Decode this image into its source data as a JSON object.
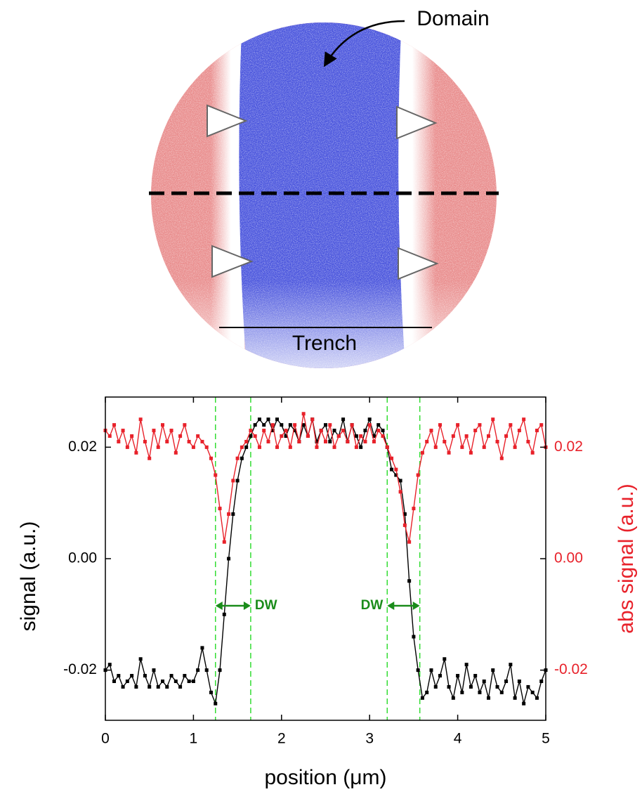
{
  "figure": {
    "domain_label": "Domain",
    "trench_label": "Trench"
  },
  "chart_data": {
    "type": "line",
    "x_label": "position (μm)",
    "y_label": "signal (a.u.)",
    "y2_label": "abs signal (a.u.)",
    "x": [
      0,
      0.05,
      0.1,
      0.15,
      0.2,
      0.25,
      0.3,
      0.35,
      0.4,
      0.45,
      0.5,
      0.55,
      0.6,
      0.65,
      0.7,
      0.75,
      0.8,
      0.85,
      0.9,
      0.95,
      1,
      1.05,
      1.1,
      1.15,
      1.2,
      1.25,
      1.3,
      1.35,
      1.4,
      1.45,
      1.5,
      1.55,
      1.6,
      1.65,
      1.7,
      1.75,
      1.8,
      1.85,
      1.9,
      1.95,
      2,
      2.05,
      2.1,
      2.15,
      2.2,
      2.25,
      2.3,
      2.35,
      2.4,
      2.45,
      2.5,
      2.55,
      2.6,
      2.65,
      2.7,
      2.75,
      2.8,
      2.85,
      2.9,
      2.95,
      3,
      3.05,
      3.1,
      3.15,
      3.2,
      3.25,
      3.3,
      3.35,
      3.4,
      3.45,
      3.5,
      3.55,
      3.6,
      3.65,
      3.7,
      3.75,
      3.8,
      3.85,
      3.9,
      3.95,
      4,
      4.05,
      4.1,
      4.15,
      4.2,
      4.25,
      4.3,
      4.35,
      4.4,
      4.45,
      4.5,
      4.55,
      4.6,
      4.65,
      4.7,
      4.75,
      4.8,
      4.85,
      4.9,
      4.95,
      5
    ],
    "series": [
      {
        "color": "#000000",
        "values": [
          -0.02,
          -0.019,
          -0.022,
          -0.021,
          -0.023,
          -0.022,
          -0.021,
          -0.023,
          -0.018,
          -0.021,
          -0.023,
          -0.02,
          -0.023,
          -0.022,
          -0.023,
          -0.021,
          -0.022,
          -0.023,
          -0.021,
          -0.022,
          -0.022,
          -0.02,
          -0.016,
          -0.02,
          -0.024,
          -0.026,
          -0.02,
          -0.01,
          0,
          0.008,
          0.014,
          0.018,
          0.02,
          0.022,
          0.024,
          0.025,
          0.024,
          0.025,
          0.023,
          0.025,
          0.024,
          0.022,
          0.024,
          0.023,
          0.021,
          0.024,
          0.022,
          0.025,
          0.021,
          0.023,
          0.024,
          0.021,
          0.023,
          0.022,
          0.025,
          0.021,
          0.024,
          0.022,
          0.02,
          0.023,
          0.025,
          0.022,
          0.024,
          0.023,
          0.02,
          0.016,
          0.015,
          0.014,
          0.008,
          -0.004,
          -0.014,
          -0.02,
          -0.025,
          -0.024,
          -0.02,
          -0.023,
          -0.021,
          -0.018,
          -0.023,
          -0.025,
          -0.021,
          -0.024,
          -0.019,
          -0.023,
          -0.021,
          -0.024,
          -0.022,
          -0.025,
          -0.02,
          -0.023,
          -0.024,
          -0.022,
          -0.019,
          -0.025,
          -0.022,
          -0.026,
          -0.023,
          -0.024,
          -0.025,
          -0.022,
          -0.02
        ]
      },
      {
        "color": "#e8212a",
        "axis": "y2",
        "values": [
          0.023,
          0.022,
          0.024,
          0.021,
          0.023,
          0.02,
          0.022,
          0.019,
          0.025,
          0.021,
          0.018,
          0.023,
          0.02,
          0.024,
          0.021,
          0.023,
          0.019,
          0.022,
          0.024,
          0.021,
          0.02,
          0.022,
          0.021,
          0.02,
          0.018,
          0.015,
          0.009,
          0.003,
          0.008,
          0.014,
          0.018,
          0.02,
          0.021,
          0.023,
          0.022,
          0.02,
          0.023,
          0.021,
          0.024,
          0.02,
          0.022,
          0.023,
          0.02,
          0.024,
          0.021,
          0.026,
          0.022,
          0.025,
          0.02,
          0.023,
          0.021,
          0.024,
          0.02,
          0.022,
          0.023,
          0.021,
          0.024,
          0.02,
          0.022,
          0.021,
          0.024,
          0.021,
          0.023,
          0.022,
          0.02,
          0.018,
          0.016,
          0.012,
          0.006,
          0.003,
          0.009,
          0.015,
          0.019,
          0.021,
          0.023,
          0.02,
          0.024,
          0.021,
          0.019,
          0.022,
          0.024,
          0.02,
          0.022,
          0.019,
          0.023,
          0.024,
          0.02,
          0.022,
          0.025,
          0.021,
          0.018,
          0.022,
          0.024,
          0.02,
          0.023,
          0.025,
          0.021,
          0.019,
          0.023,
          0.024,
          0.02
        ]
      }
    ],
    "xlim": [
      0,
      5
    ],
    "xticks": [
      0,
      1,
      2,
      3,
      4,
      5
    ],
    "ylim": [
      -0.029,
      0.029
    ],
    "yticks": [
      -0.02,
      {
        "value": 0,
        "label": "0.00"
      },
      0.02
    ],
    "y2lim": [
      -0.029,
      0.029
    ],
    "y2ticks": [
      -0.02,
      {
        "value": 0,
        "label": "0.00"
      },
      0.02
    ],
    "y2_color": "#e8212a",
    "dw_ranges": [
      [
        1.25,
        1.65
      ],
      [
        3.2,
        3.57
      ]
    ],
    "dw_label": "DW",
    "dw_color": "#1a8c1a"
  }
}
